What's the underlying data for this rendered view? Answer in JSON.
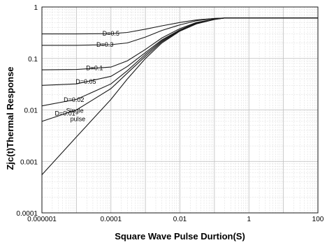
{
  "chart_data": {
    "type": "line",
    "xlabel": "Square Wave Pulse Durtion(S)",
    "ylabel": "Zjc(t)Thermal Response",
    "x_scale": "log",
    "y_scale": "log",
    "xlim": [
      1e-06,
      100
    ],
    "ylim": [
      0.0001,
      1
    ],
    "grid": true,
    "x_ticks": [
      {
        "value": 1e-06,
        "label": "0.000001"
      },
      {
        "value": 0.0001,
        "label": "0.0001"
      },
      {
        "value": 0.01,
        "label": "0.01"
      },
      {
        "value": 1,
        "label": "1"
      },
      {
        "value": 100,
        "label": "100"
      }
    ],
    "y_ticks": [
      {
        "value": 1,
        "label": "1"
      },
      {
        "value": 0.1,
        "label": "0.1"
      },
      {
        "value": 0.01,
        "label": "0.01"
      },
      {
        "value": 0.001,
        "label": "0.001"
      },
      {
        "value": 0.0001,
        "label": "0.0001"
      }
    ],
    "series": [
      {
        "name": "D=0.5",
        "label": "D=0.5",
        "label_at": 0.00012,
        "points": [
          [
            1e-06,
            0.3
          ],
          [
            1e-05,
            0.3
          ],
          [
            0.0001,
            0.303
          ],
          [
            0.0003,
            0.32
          ],
          [
            0.001,
            0.37
          ],
          [
            0.003,
            0.43
          ],
          [
            0.01,
            0.5
          ],
          [
            0.03,
            0.56
          ],
          [
            0.1,
            0.6
          ],
          [
            0.2,
            0.61
          ],
          [
            100,
            0.61
          ]
        ]
      },
      {
        "name": "D=0.3",
        "label": "D=0.3",
        "label_at": 8e-05,
        "points": [
          [
            1e-06,
            0.18
          ],
          [
            1e-05,
            0.18
          ],
          [
            0.0001,
            0.185
          ],
          [
            0.0003,
            0.2
          ],
          [
            0.001,
            0.26
          ],
          [
            0.003,
            0.35
          ],
          [
            0.01,
            0.45
          ],
          [
            0.03,
            0.54
          ],
          [
            0.1,
            0.6
          ],
          [
            0.2,
            0.61
          ],
          [
            100,
            0.61
          ]
        ]
      },
      {
        "name": "D=0.1",
        "label": "D=0.1",
        "label_at": 4e-05,
        "points": [
          [
            1e-06,
            0.06
          ],
          [
            1e-05,
            0.061
          ],
          [
            0.0001,
            0.068
          ],
          [
            0.0003,
            0.09
          ],
          [
            0.001,
            0.15
          ],
          [
            0.003,
            0.25
          ],
          [
            0.01,
            0.38
          ],
          [
            0.03,
            0.5
          ],
          [
            0.1,
            0.58
          ],
          [
            0.2,
            0.61
          ],
          [
            100,
            0.61
          ]
        ]
      },
      {
        "name": "D=0.05",
        "label": "D=0.05",
        "label_at": 2e-05,
        "points": [
          [
            1e-06,
            0.03
          ],
          [
            1e-05,
            0.032
          ],
          [
            0.0001,
            0.045
          ],
          [
            0.0003,
            0.07
          ],
          [
            0.001,
            0.13
          ],
          [
            0.003,
            0.23
          ],
          [
            0.01,
            0.36
          ],
          [
            0.03,
            0.49
          ],
          [
            0.1,
            0.58
          ],
          [
            0.2,
            0.61
          ],
          [
            100,
            0.61
          ]
        ]
      },
      {
        "name": "D=0.02",
        "label": "D=0.02",
        "label_at": 9e-06,
        "points": [
          [
            1e-06,
            0.012
          ],
          [
            1e-05,
            0.016
          ],
          [
            0.0001,
            0.032
          ],
          [
            0.0003,
            0.058
          ],
          [
            0.001,
            0.12
          ],
          [
            0.003,
            0.22
          ],
          [
            0.01,
            0.35
          ],
          [
            0.03,
            0.48
          ],
          [
            0.1,
            0.58
          ],
          [
            0.2,
            0.61
          ],
          [
            100,
            0.61
          ]
        ]
      },
      {
        "name": "D=0.01",
        "label": "D=0.01",
        "label_at": 5e-06,
        "points": [
          [
            1e-06,
            0.006
          ],
          [
            1e-05,
            0.01
          ],
          [
            0.0001,
            0.026
          ],
          [
            0.0003,
            0.052
          ],
          [
            0.001,
            0.11
          ],
          [
            0.003,
            0.21
          ],
          [
            0.01,
            0.345
          ],
          [
            0.03,
            0.48
          ],
          [
            0.1,
            0.58
          ],
          [
            0.2,
            0.61
          ],
          [
            100,
            0.61
          ]
        ]
      },
      {
        "name": "Single pulse",
        "label": "Single pulse",
        "label_lines": [
          "Single",
          "pulse"
        ],
        "label_at": 8e-06,
        "points": [
          [
            1e-06,
            0.00055
          ],
          [
            1e-05,
            0.003
          ],
          [
            0.0001,
            0.016
          ],
          [
            0.0003,
            0.04
          ],
          [
            0.001,
            0.1
          ],
          [
            0.003,
            0.2
          ],
          [
            0.01,
            0.34
          ],
          [
            0.03,
            0.47
          ],
          [
            0.1,
            0.57
          ],
          [
            0.2,
            0.61
          ],
          [
            100,
            0.61
          ]
        ]
      }
    ]
  }
}
